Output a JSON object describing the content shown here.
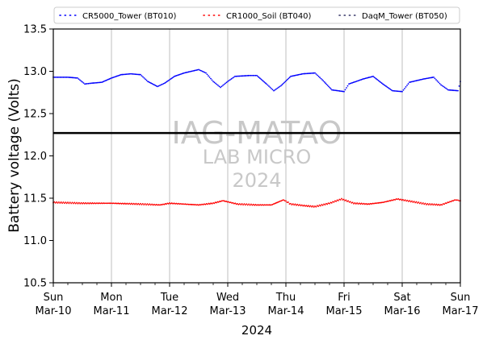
{
  "chart_data": {
    "type": "scatter",
    "title": "",
    "xlabel": "2024",
    "ylabel": "Battery voltage (Volts)",
    "ylim": [
      10.5,
      13.5
    ],
    "yticks": [
      "10.5",
      "11.0",
      "11.5",
      "12.0",
      "12.5",
      "13.0",
      "13.5"
    ],
    "xlim": [
      "2024-03-10",
      "2024-03-17"
    ],
    "xticks": [
      {
        "day": "Sun",
        "date": "Mar-10"
      },
      {
        "day": "Mon",
        "date": "Mar-11"
      },
      {
        "day": "Tue",
        "date": "Mar-12"
      },
      {
        "day": "Wed",
        "date": "Mar-13"
      },
      {
        "day": "Thu",
        "date": "Mar-14"
      },
      {
        "day": "Fri",
        "date": "Mar-15"
      },
      {
        "day": "Sat",
        "date": "Mar-16"
      },
      {
        "day": "Sun",
        "date": "Mar-17"
      }
    ],
    "grid": "vertical",
    "legend_position": "top",
    "reference_line": {
      "y": 12.27,
      "color": "#000000"
    },
    "watermark": [
      "IAG-MATAO",
      "LAB MICRO",
      "2024"
    ],
    "series": [
      {
        "name": "CR5000_Tower (BT010)",
        "color": "#0000ff",
        "points": [
          [
            "2024-03-10 00:00",
            12.93
          ],
          [
            "2024-03-10 06:00",
            12.93
          ],
          [
            "2024-03-10 10:00",
            12.92
          ],
          [
            "2024-03-10 13:00",
            12.85
          ],
          [
            "2024-03-10 16:00",
            12.86
          ],
          [
            "2024-03-10 20:00",
            12.87
          ],
          [
            "2024-03-11 00:00",
            12.92
          ],
          [
            "2024-03-11 04:00",
            12.96
          ],
          [
            "2024-03-11 08:00",
            12.97
          ],
          [
            "2024-03-11 12:00",
            12.96
          ],
          [
            "2024-03-11 15:00",
            12.88
          ],
          [
            "2024-03-11 19:00",
            12.82
          ],
          [
            "2024-03-11 22:00",
            12.86
          ],
          [
            "2024-03-12 02:00",
            12.94
          ],
          [
            "2024-03-12 06:00",
            12.98
          ],
          [
            "2024-03-12 12:00",
            13.02
          ],
          [
            "2024-03-12 15:00",
            12.98
          ],
          [
            "2024-03-12 18:00",
            12.88
          ],
          [
            "2024-03-12 21:00",
            12.81
          ],
          [
            "2024-03-13 00:00",
            12.88
          ],
          [
            "2024-03-13 03:00",
            12.94
          ],
          [
            "2024-03-13 09:00",
            12.95
          ],
          [
            "2024-03-13 12:00",
            12.95
          ],
          [
            "2024-03-13 16:00",
            12.85
          ],
          [
            "2024-03-13 19:00",
            12.77
          ],
          [
            "2024-03-13 22:00",
            12.83
          ],
          [
            "2024-03-14 02:00",
            12.94
          ],
          [
            "2024-03-14 07:00",
            12.97
          ],
          [
            "2024-03-14 12:00",
            12.98
          ],
          [
            "2024-03-14 15:00",
            12.9
          ],
          [
            "2024-03-14 19:00",
            12.78
          ],
          [
            "2024-03-15 00:00",
            12.76
          ],
          [
            "2024-03-15 02:00",
            12.85
          ],
          [
            "2024-03-15 08:00",
            12.91
          ],
          [
            "2024-03-15 12:00",
            12.94
          ],
          [
            "2024-03-15 16:00",
            12.85
          ],
          [
            "2024-03-15 20:00",
            12.77
          ],
          [
            "2024-03-16 00:00",
            12.76
          ],
          [
            "2024-03-16 03:00",
            12.87
          ],
          [
            "2024-03-16 09:00",
            12.91
          ],
          [
            "2024-03-16 13:00",
            12.93
          ],
          [
            "2024-03-16 16:00",
            12.84
          ],
          [
            "2024-03-16 19:00",
            12.78
          ],
          [
            "2024-03-16 23:00",
            12.77
          ],
          [
            "2024-03-17 00:00",
            12.88
          ]
        ]
      },
      {
        "name": "CR1000_Soil (BT040)",
        "color": "#ff0000",
        "points": [
          [
            "2024-03-10 00:00",
            11.45
          ],
          [
            "2024-03-10 12:00",
            11.44
          ],
          [
            "2024-03-11 00:00",
            11.44
          ],
          [
            "2024-03-11 12:00",
            11.43
          ],
          [
            "2024-03-11 20:00",
            11.42
          ],
          [
            "2024-03-12 00:00",
            11.44
          ],
          [
            "2024-03-12 06:00",
            11.43
          ],
          [
            "2024-03-12 12:00",
            11.42
          ],
          [
            "2024-03-12 18:00",
            11.44
          ],
          [
            "2024-03-12 22:00",
            11.47
          ],
          [
            "2024-03-13 04:00",
            11.43
          ],
          [
            "2024-03-13 12:00",
            11.42
          ],
          [
            "2024-03-13 18:00",
            11.42
          ],
          [
            "2024-03-13 23:00",
            11.48
          ],
          [
            "2024-03-14 02:00",
            11.43
          ],
          [
            "2024-03-14 08:00",
            11.41
          ],
          [
            "2024-03-14 12:00",
            11.4
          ],
          [
            "2024-03-14 18:00",
            11.44
          ],
          [
            "2024-03-14 23:00",
            11.49
          ],
          [
            "2024-03-15 04:00",
            11.44
          ],
          [
            "2024-03-15 10:00",
            11.43
          ],
          [
            "2024-03-15 16:00",
            11.45
          ],
          [
            "2024-03-15 22:00",
            11.49
          ],
          [
            "2024-03-16 04:00",
            11.46
          ],
          [
            "2024-03-16 10:00",
            11.43
          ],
          [
            "2024-03-16 16:00",
            11.42
          ],
          [
            "2024-03-16 22:00",
            11.48
          ],
          [
            "2024-03-17 00:00",
            11.47
          ]
        ]
      },
      {
        "name": "DaqM_Tower (BT050)",
        "color": "#333366",
        "points": []
      }
    ]
  }
}
